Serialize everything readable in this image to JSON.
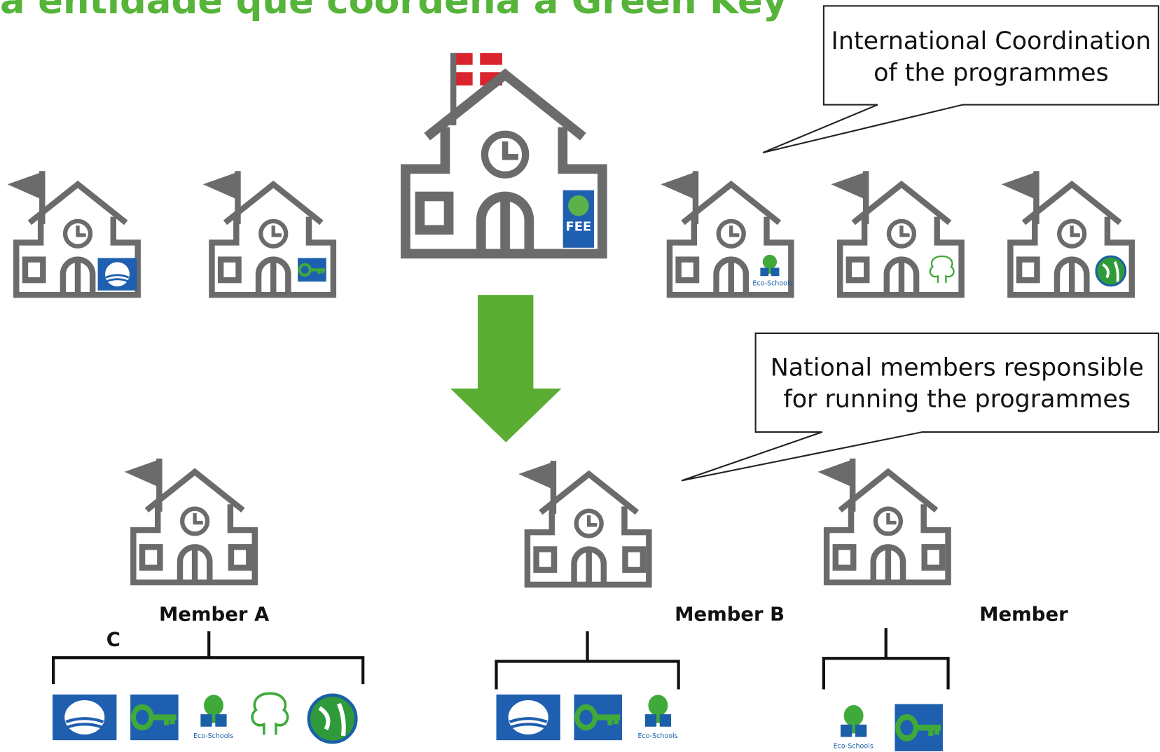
{
  "title": "a entidade que coordena a Green Key",
  "callouts": [
    {
      "lines": [
        "International Coordination",
        "of the programmes"
      ]
    },
    {
      "lines": [
        "National members responsible",
        "for running the programmes"
      ]
    }
  ],
  "fee_badge": "FEE",
  "eco_schools": "Eco-Schools",
  "members": [
    "Member A",
    "Member B",
    "Member"
  ],
  "annotation": "C"
}
